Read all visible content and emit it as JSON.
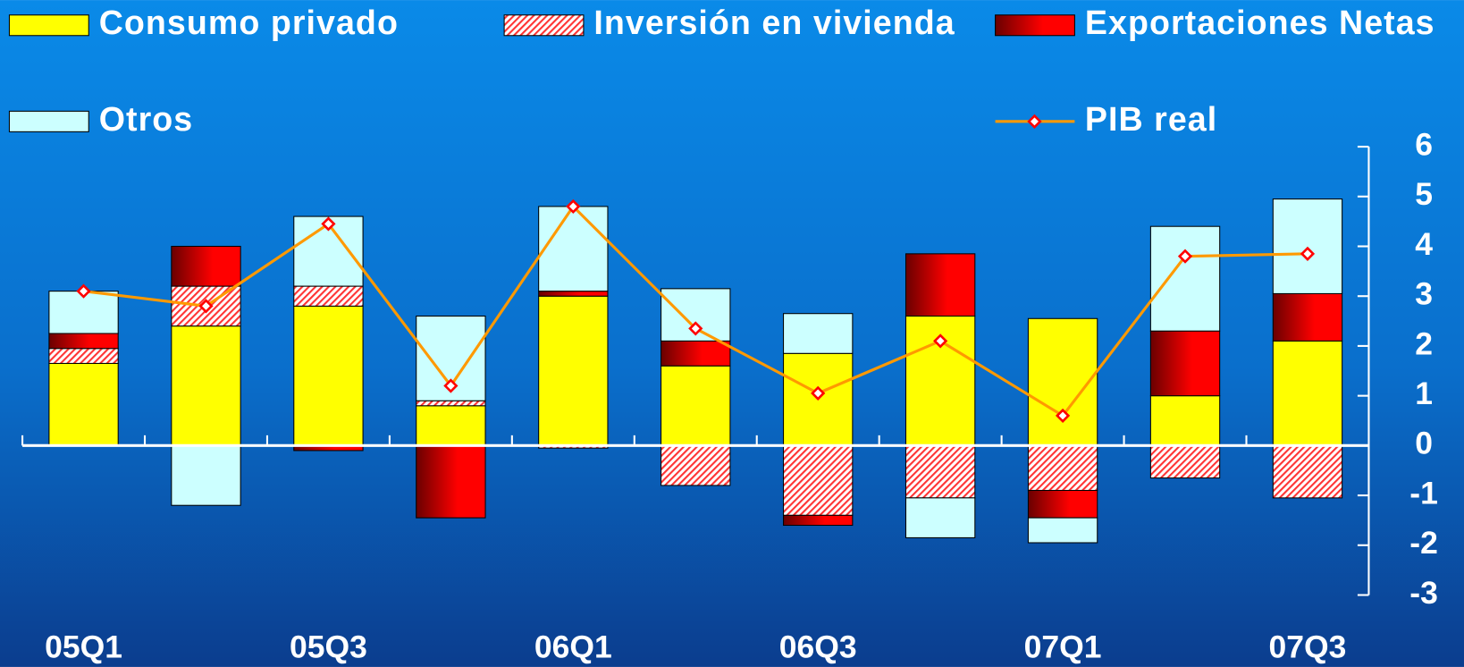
{
  "chart_data": {
    "type": "bar",
    "categories": [
      "05Q1",
      null,
      "05Q3",
      null,
      "06Q1",
      null,
      "06Q3",
      null,
      "07Q1",
      null,
      "07Q3"
    ],
    "series": [
      {
        "name": "Consumo privado",
        "color": "#ffff00",
        "type": "bar",
        "values": [
          1.65,
          2.4,
          2.8,
          0.8,
          3.0,
          1.6,
          1.85,
          2.6,
          2.55,
          1.0,
          2.1
        ]
      },
      {
        "name": "Inversión en vivienda",
        "color": "#ff3333",
        "type": "bar",
        "pattern": "hatch",
        "values": [
          0.3,
          0.8,
          0.4,
          0.1,
          -0.05,
          -0.8,
          -1.4,
          -1.05,
          -0.9,
          -0.65,
          -1.05
        ]
      },
      {
        "name": "Exportaciones Netas",
        "color": "#ff0000",
        "type": "bar",
        "pattern": "gradient",
        "values": [
          0.3,
          0.8,
          -0.1,
          -1.45,
          0.1,
          0.5,
          -0.2,
          1.25,
          -0.55,
          1.3,
          0.95
        ]
      },
      {
        "name": "Otros",
        "color": "#ccffff",
        "type": "bar",
        "values": [
          0.85,
          -1.2,
          1.4,
          1.7,
          1.7,
          1.05,
          0.8,
          -0.8,
          -0.5,
          2.1,
          1.9
        ]
      },
      {
        "name": "PIB real",
        "color": "#ff9900",
        "type": "line",
        "values": [
          3.1,
          2.8,
          4.45,
          1.2,
          4.8,
          2.35,
          1.05,
          2.1,
          0.6,
          3.8,
          3.85
        ]
      }
    ],
    "ylim": [
      -3,
      6
    ],
    "yticks": [
      -3,
      -2,
      -1,
      0,
      1,
      2,
      3,
      4,
      5,
      6
    ],
    "y_axis_side": "right",
    "legend": "top"
  }
}
